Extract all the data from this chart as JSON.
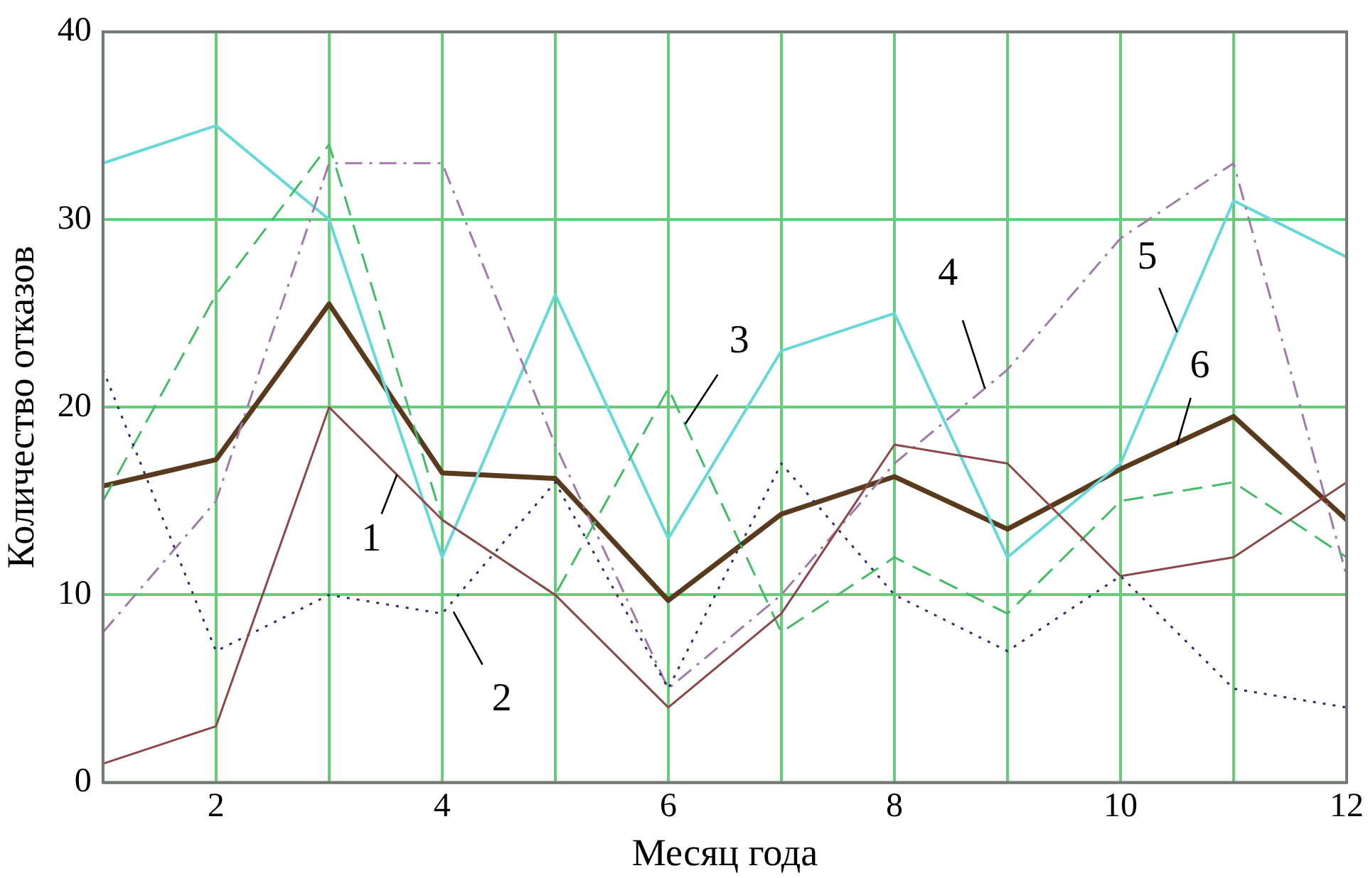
{
  "chart_data": {
    "type": "line",
    "xlabel": "Месяц года",
    "ylabel": "Количество отказов",
    "x": [
      1,
      2,
      3,
      4,
      5,
      6,
      7,
      8,
      9,
      10,
      11,
      12
    ],
    "xlim": [
      1,
      12
    ],
    "xticks": [
      {
        "value": 1,
        "label": null
      },
      2,
      {
        "value": 3,
        "label": null
      },
      4,
      {
        "value": 5,
        "label": null
      },
      6,
      {
        "value": 7,
        "label": null
      },
      8,
      {
        "value": 9,
        "label": null
      },
      10,
      {
        "value": 11,
        "label": null
      },
      12
    ],
    "ylim": [
      0,
      40
    ],
    "yticks": [
      0,
      10,
      20,
      30,
      40
    ],
    "grid": true,
    "legend": false,
    "marker": "none",
    "series": [
      {
        "color": "#8b4848",
        "line_style": "solid",
        "values": [
          1,
          3,
          20,
          14,
          10,
          4,
          9,
          18,
          17,
          11,
          12,
          16
        ]
      },
      {
        "color": "#2a2f6e",
        "line_style": "dotted",
        "values": [
          22,
          7,
          10,
          9,
          16,
          5,
          17,
          10,
          7,
          11,
          5,
          4
        ]
      },
      {
        "color": "#44bb66",
        "line_style": "dashed",
        "values": [
          15,
          26,
          34,
          14,
          10,
          21,
          8,
          12,
          9,
          15,
          16,
          12
        ]
      },
      {
        "color": "#a07aa8",
        "line_style": "dashdot",
        "values": [
          8,
          15,
          33,
          33,
          18,
          5,
          10,
          17,
          22,
          29,
          33,
          11
        ]
      },
      {
        "color": "#66d8d8",
        "line_style": "solid",
        "values": [
          33,
          35,
          30,
          12,
          26,
          13,
          23,
          25,
          12,
          17,
          31,
          28
        ]
      },
      {
        "color": "#5a3a1c",
        "line_style": "solid",
        "values": [
          15.8,
          17.2,
          25.5,
          16.5,
          16.2,
          9.7,
          14.3,
          16.3,
          13.5,
          16.7,
          19.5,
          14
        ]
      }
    ],
    "annotations": [
      {
        "text": "1",
        "x": 3.6,
        "y": 16.4
      },
      {
        "text": "2",
        "x": 4.1,
        "y": 9.1
      },
      {
        "text": "3",
        "x": 6.15,
        "y": 19.1
      },
      {
        "text": "4",
        "x": 8.8,
        "y": 21
      },
      {
        "text": "5",
        "x": 10.5,
        "y": 24
      },
      {
        "text": "6",
        "x": 10.5,
        "y": 18
      }
    ]
  }
}
